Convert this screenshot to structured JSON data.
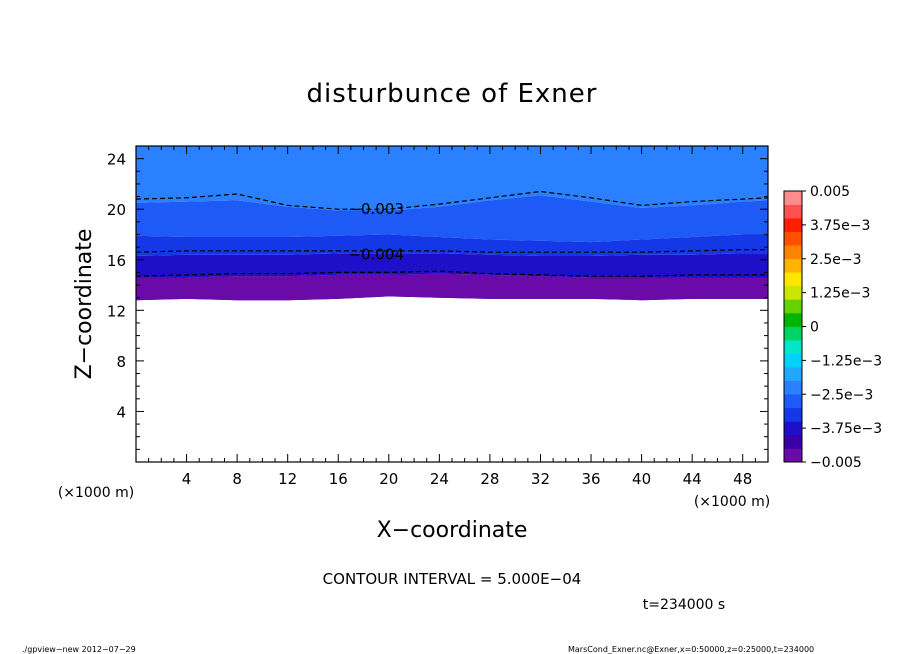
{
  "chart_data": {
    "type": "heatmap",
    "title": "disturbunce of Exner",
    "xlabel": "X−coordinate",
    "ylabel": "Z−coordinate",
    "x_unit_left": "(×1000 m)",
    "x_unit_right": "(×1000 m)",
    "xlim": [
      0,
      50
    ],
    "ylim": [
      0,
      25
    ],
    "x_ticks": [
      4,
      8,
      12,
      16,
      20,
      24,
      28,
      32,
      36,
      40,
      44,
      48
    ],
    "y_ticks": [
      4,
      8,
      12,
      16,
      20,
      24
    ],
    "x_tick_labels": [
      "4",
      "8",
      "12",
      "16",
      "20",
      "24",
      "28",
      "32",
      "36",
      "40",
      "44",
      "48"
    ],
    "y_tick_labels": [
      "4",
      "8",
      "12",
      "16",
      "20",
      "24"
    ],
    "contour_interval_text": "CONTOUR INTERVAL = 5.000E−04",
    "time_text": "t=234000 s",
    "footer_left": "./gpview−new   2012−07−29",
    "footer_right": "MarsCond_Exner.nc@Exner,x=0:50000,z=0:25000,t=234000",
    "contour_labels": [
      {
        "text": "−0.003",
        "x": 19.0,
        "z": 20.0
      },
      {
        "text": "−0.004",
        "x": 19.0,
        "z": 16.4
      }
    ],
    "colorbar": {
      "range": [
        -0.005,
        0.005
      ],
      "labels": [
        "0.005",
        "3.75e−3",
        "2.5e−3",
        "1.25e−3",
        "0",
        "−1.25e−3",
        "−2.5e−3",
        "−3.75e−3",
        "−0.005"
      ],
      "colors": [
        "#6a0aa8",
        "#3a00a8",
        "#1e10c8",
        "#1438e6",
        "#1e5af5",
        "#2a80ff",
        "#20a8ff",
        "#00d2ff",
        "#00e6c8",
        "#00d264",
        "#00b400",
        "#64d200",
        "#c8e600",
        "#ffe600",
        "#ffb400",
        "#ff8200",
        "#ff5000",
        "#ff1e00",
        "#ff5050",
        "#ff8c8c"
      ]
    },
    "x_profile": [
      0,
      4,
      8,
      12,
      16,
      20,
      24,
      28,
      32,
      36,
      40,
      44,
      48,
      50
    ],
    "fill_bands": [
      {
        "color": "#1e5af5",
        "lower": [
          20.5,
          20.6,
          20.7,
          20.2,
          19.9,
          19.9,
          20.2,
          20.7,
          21.1,
          20.6,
          20.1,
          20.3,
          20.6,
          20.7
        ]
      },
      {
        "color": "#1438e6",
        "lower": [
          17.9,
          17.8,
          17.8,
          17.8,
          17.9,
          18.0,
          17.8,
          17.6,
          17.5,
          17.4,
          17.6,
          17.8,
          18.0,
          18.0
        ]
      },
      {
        "color": "#1e10c8",
        "lower": [
          16.3,
          16.4,
          16.4,
          16.4,
          16.5,
          16.5,
          16.5,
          16.4,
          16.3,
          16.3,
          16.4,
          16.4,
          16.5,
          16.5
        ]
      },
      {
        "color": "#3a00a8",
        "lower": [
          14.6,
          14.6,
          14.7,
          14.7,
          14.8,
          14.8,
          14.9,
          14.8,
          14.7,
          14.6,
          14.6,
          14.6,
          14.6,
          14.6
        ]
      },
      {
        "color": "#6a0aa8",
        "lower": [
          12.8,
          12.9,
          12.8,
          12.8,
          12.9,
          13.1,
          13.0,
          12.9,
          12.9,
          12.9,
          12.8,
          12.9,
          12.9,
          12.9
        ]
      }
    ],
    "contour_lines": [
      {
        "value": -0.003,
        "z": [
          20.8,
          20.9,
          21.2,
          20.3,
          20.0,
          20.0,
          20.4,
          20.9,
          21.4,
          20.9,
          20.3,
          20.6,
          20.8,
          20.9
        ]
      },
      {
        "value": -0.004,
        "z": [
          16.6,
          16.7,
          16.7,
          16.7,
          16.7,
          16.7,
          16.7,
          16.6,
          16.6,
          16.6,
          16.6,
          16.7,
          16.8,
          16.8
        ]
      },
      {
        "value": -0.0045,
        "z": [
          14.7,
          14.8,
          14.9,
          14.9,
          15.0,
          15.0,
          15.1,
          14.9,
          14.8,
          14.7,
          14.7,
          14.8,
          14.8,
          14.8
        ]
      }
    ],
    "top_fill_color": "#2a80ff",
    "grid": false,
    "legend": "right"
  }
}
